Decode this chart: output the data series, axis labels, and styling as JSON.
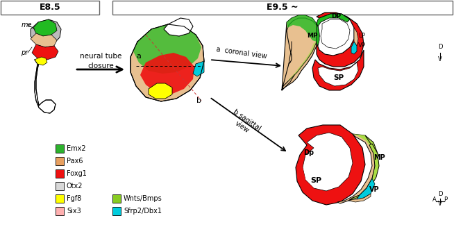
{
  "title_e85": "E8.5",
  "title_e95": "E9.5 ~",
  "legend_items": [
    {
      "label": "Emx2",
      "color": "#2db22d"
    },
    {
      "label": "Pax6",
      "color": "#e8a060"
    },
    {
      "label": "Foxg1",
      "color": "#ee1111"
    },
    {
      "label": "Otx2",
      "color": "#d8d8d8"
    },
    {
      "label": "Fgf8",
      "color": "#ffff00"
    },
    {
      "label": "Six3",
      "color": "#ffb0b0"
    },
    {
      "label": "Wnts/Bmps",
      "color": "#88cc22"
    },
    {
      "label": "Sfrp2/Dbx1",
      "color": "#00ccdd"
    }
  ],
  "arrow_text": "neural tube\nclosure",
  "label_me": "me",
  "label_pr": "pr",
  "label_a": "a",
  "label_b": "b",
  "coronal_label": "a  coronal view",
  "sagittal_label": "b sagittal\nview",
  "red": "#ee1111",
  "bright_green": "#22bb22",
  "yellow_green": "#aadd44",
  "tan": "#e8c090",
  "tan_light": "#f0d8a8",
  "cyan": "#00ccdd",
  "yellow": "#ffff00",
  "pink": "#ffb0b0",
  "gray": "#bbbbbb",
  "white": "#ffffff",
  "black": "#000000"
}
